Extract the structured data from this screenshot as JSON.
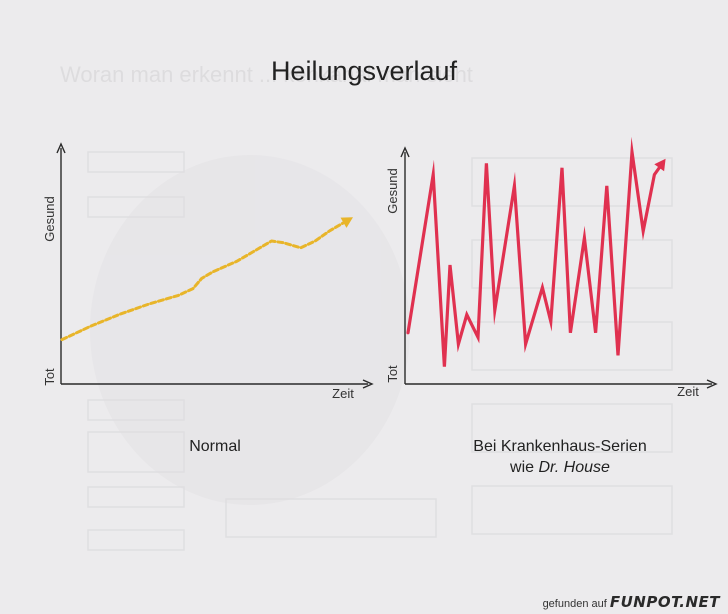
{
  "page": {
    "title": "Heilungsverlauf",
    "watermark_prefix": "gefunden auf",
    "watermark_brand": "FUNPOT.NET"
  },
  "colors": {
    "normal_line": "#e8b52a",
    "house_line": "#e03150",
    "axis": "#2a2a2a",
    "paper": "#ecebed",
    "faded_text": "#d2d1d3"
  },
  "background_text": {
    "heading": "Woran man erkennt ... kenkanal man sieht"
  },
  "chart_data": [
    {
      "type": "line",
      "caption": "Normal",
      "xlabel": "Zeit",
      "ylabel_high": "Gesund",
      "ylabel_low": "Tot",
      "xlim": [
        0,
        100
      ],
      "ylim": [
        0,
        100
      ],
      "line_style": "dashed",
      "arrow_end": true,
      "series": [
        {
          "x": [
            0,
            10,
            20,
            30,
            40,
            45,
            48,
            52,
            60,
            67,
            72,
            76,
            82,
            87,
            92,
            100
          ],
          "y": [
            12,
            20,
            27,
            33,
            38,
            42,
            48,
            52,
            58,
            65,
            70,
            69,
            66,
            70,
            76,
            84
          ]
        }
      ]
    },
    {
      "type": "line",
      "caption_line1": "Bei Krankenhaus-Serien",
      "caption_line2_prefix": "wie ",
      "caption_line2_emph": "Dr. House",
      "xlabel": "Zeit",
      "ylabel_high": "Gesund",
      "ylabel_low": "Tot",
      "xlim": [
        0,
        100
      ],
      "ylim": [
        0,
        100
      ],
      "line_style": "solid",
      "arrow_end": true,
      "series": [
        {
          "x": [
            0,
            9,
            13,
            15,
            18,
            21,
            25,
            28,
            31,
            38,
            42,
            48,
            51,
            55,
            58,
            63,
            67,
            71,
            75,
            80,
            84,
            88,
            92
          ],
          "y": [
            20,
            90,
            5,
            50,
            15,
            28,
            18,
            95,
            30,
            85,
            15,
            40,
            25,
            93,
            20,
            62,
            20,
            85,
            10,
            100,
            65,
            90,
            97
          ]
        }
      ]
    }
  ]
}
